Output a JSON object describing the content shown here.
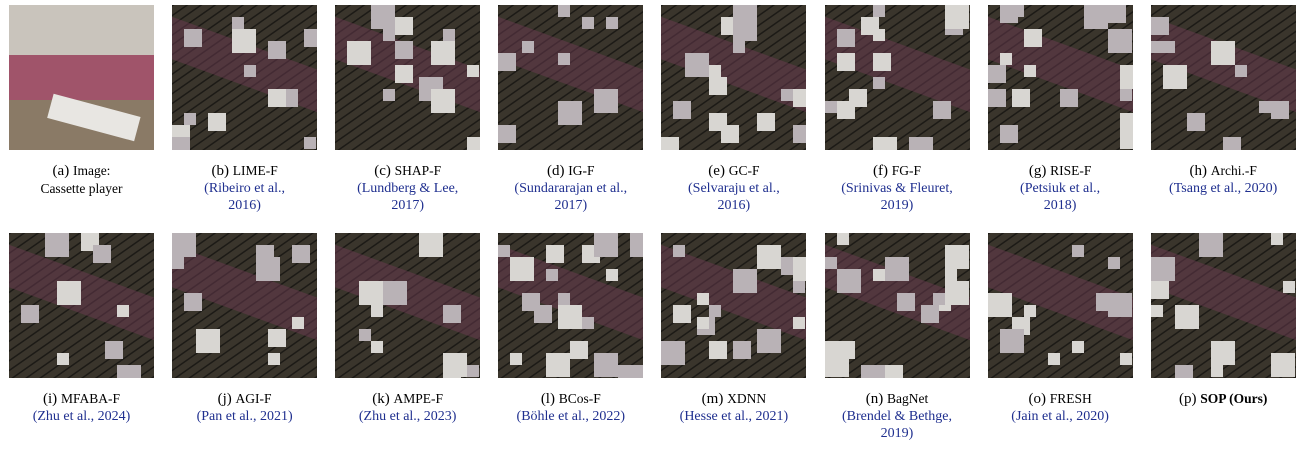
{
  "panels": [
    {
      "letter": "(a)",
      "name": "Image:",
      "lines": [
        "Cassette player"
      ]
    },
    {
      "letter": "(b)",
      "name": "LIME-F",
      "lines": [
        "(Ribeiro et al.,",
        "2016)"
      ]
    },
    {
      "letter": "(c)",
      "name": "SHAP-F",
      "lines": [
        "(Lundberg & Lee,",
        "2017)"
      ]
    },
    {
      "letter": "(d)",
      "name": "IG-F",
      "lines": [
        "(Sundararajan et al.,",
        "2017)"
      ]
    },
    {
      "letter": "(e)",
      "name": "GC-F",
      "lines": [
        "(Selvaraju et al.,",
        "2016)"
      ]
    },
    {
      "letter": "(f)",
      "name": "FG-F",
      "lines": [
        "(Srinivas & Fleuret,",
        "2019)"
      ]
    },
    {
      "letter": "(g)",
      "name": "RISE-F",
      "lines": [
        "(Petsiuk et al.,",
        "2018)"
      ]
    },
    {
      "letter": "(h)",
      "name": "Archi.-F",
      "lines": [
        "(Tsang et al., 2020)"
      ]
    },
    {
      "letter": "(i)",
      "name": "MFABA-F",
      "lines": [
        "(Zhu et al., 2024)"
      ]
    },
    {
      "letter": "(j)",
      "name": "AGI-F",
      "lines": [
        "(Pan et al., 2021)"
      ]
    },
    {
      "letter": "(k)",
      "name": "AMPE-F",
      "lines": [
        "(Zhu et al., 2023)"
      ]
    },
    {
      "letter": "(l)",
      "name": "BCos-F",
      "lines": [
        "(Böhle et al., 2022)"
      ]
    },
    {
      "letter": "(m)",
      "name": "XDNN",
      "lines": [
        "(Hesse et al., 2021)"
      ]
    },
    {
      "letter": "(n)",
      "name": "BagNet",
      "lines": [
        "(Brendel & Bethge,",
        "2019)"
      ]
    },
    {
      "letter": "(o)",
      "name": "FRESH",
      "lines": [
        "(Jain et al., 2020)"
      ]
    },
    {
      "letter": "(p)",
      "name": "SOP (Ours)",
      "lines": []
    }
  ]
}
